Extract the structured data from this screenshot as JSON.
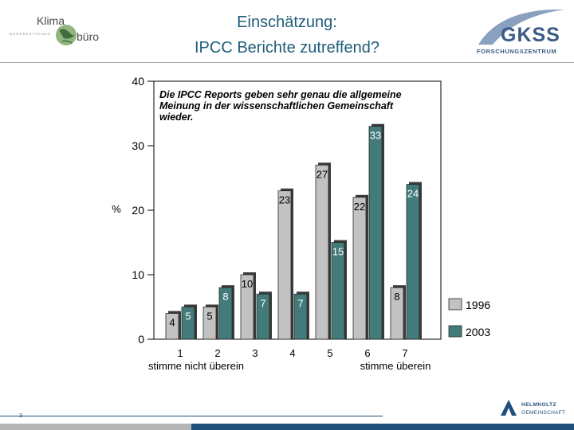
{
  "header": {
    "title_line1": "Einschätzung:",
    "title_line2": "IPCC Berichte zutreffend?",
    "logo_left_top": "Klima",
    "logo_left_bottom": "büro",
    "logo_left_tagline": "NORDDEUTSCHES",
    "logo_right_name": "GKSS",
    "logo_right_sub": "FORSCHUNGSZENTRUM"
  },
  "footer": {
    "page_number": "3",
    "logo_line1": "HELMHOLTZ",
    "logo_line2": "GEMEINSCHAFT",
    "colors": {
      "blue": "#1f4f7a",
      "gray": "#b5b5b5"
    }
  },
  "chart_data": {
    "type": "bar",
    "title": "Die IPCC Reports geben sehr genau die allgemeine Meinung in der wissenschaftlichen Gemeinschaft wieder.",
    "title_lines": [
      "Die IPCC Reports geben sehr genau die allgemeine",
      "Meinung in der wissenschaftlichen Gemeinschaft",
      "wieder."
    ],
    "categories": [
      "1",
      "2",
      "3",
      "4",
      "5",
      "6",
      "7"
    ],
    "series": [
      {
        "name": "1996",
        "values": [
          4,
          5,
          10,
          23,
          27,
          22,
          8
        ],
        "color": "#c2c2c2"
      },
      {
        "name": "2003",
        "values": [
          5,
          8,
          7,
          7,
          15,
          33,
          24
        ],
        "color": "#437a7a"
      }
    ],
    "ylabel": "%",
    "ylim": [
      0,
      40
    ],
    "yticks": [
      0,
      10,
      20,
      30,
      40
    ],
    "x_annotation_left": "stimme nicht überein",
    "x_annotation_right": "stimme überein",
    "legend_position": "bottom-right",
    "grid": false
  }
}
